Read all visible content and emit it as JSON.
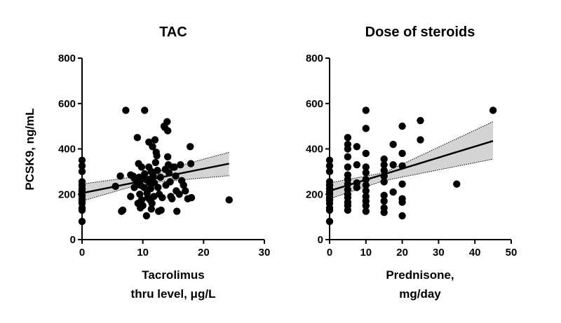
{
  "ylabel": "PCSK9, ng/mL",
  "chart_data": [
    {
      "type": "scatter",
      "title": "TAC",
      "xlabel": [
        "Tacrolimus",
        "thru level, μg/L"
      ],
      "ylabel": "PCSK9, ng/mL",
      "xlim": [
        0,
        30
      ],
      "ylim": [
        0,
        800
      ],
      "xticks": [
        0,
        10,
        20,
        30
      ],
      "yticks": [
        0,
        200,
        400,
        600,
        800
      ],
      "grid": false,
      "series": [
        {
          "points": [
            [
              0,
              80
            ],
            [
              0,
              130
            ],
            [
              0,
              140
            ],
            [
              0,
              160
            ],
            [
              0,
              170
            ],
            [
              0,
              180
            ],
            [
              0,
              195
            ],
            [
              0,
              210
            ],
            [
              0,
              215
            ],
            [
              0,
              225
            ],
            [
              0,
              240
            ],
            [
              0,
              255
            ],
            [
              0,
              300
            ],
            [
              0,
              325
            ],
            [
              0,
              350
            ],
            [
              5.5,
              235
            ],
            [
              6.3,
              280
            ],
            [
              6.5,
              125
            ],
            [
              6.7,
              130
            ],
            [
              7.2,
              570
            ],
            [
              8,
              190
            ],
            [
              8,
              285
            ],
            [
              8.4,
              280
            ],
            [
              8.6,
              270
            ],
            [
              8.6,
              230
            ],
            [
              9,
              255
            ],
            [
              9.1,
              450
            ],
            [
              9.2,
              160
            ],
            [
              9.3,
              335
            ],
            [
              9.4,
              275
            ],
            [
              9.5,
              200
            ],
            [
              9.6,
              140
            ],
            [
              9.6,
              240
            ],
            [
              9.7,
              265
            ],
            [
              9.8,
              320
            ],
            [
              9.8,
              175
            ],
            [
              10,
              150
            ],
            [
              10.2,
              230
            ],
            [
              10.3,
              290
            ],
            [
              10.3,
              570
            ],
            [
              10.5,
              265
            ],
            [
              10.6,
              105
            ],
            [
              10.7,
              205
            ],
            [
              10.8,
              185
            ],
            [
              11,
              430
            ],
            [
              11,
              320
            ],
            [
              11,
              265
            ],
            [
              11.1,
              250
            ],
            [
              11.2,
              175
            ],
            [
              11.3,
              225
            ],
            [
              11.4,
              300
            ],
            [
              11.4,
              135
            ],
            [
              11.5,
              160
            ],
            [
              11.6,
              410
            ],
            [
              11.7,
              280
            ],
            [
              11.8,
              190
            ],
            [
              11.9,
              250
            ],
            [
              12,
              440
            ],
            [
              12.1,
              340
            ],
            [
              12.2,
              385
            ],
            [
              12.3,
              370
            ],
            [
              12.4,
              305
            ],
            [
              12.5,
              230
            ],
            [
              12.6,
              125
            ],
            [
              12.7,
              200
            ],
            [
              12.9,
              275
            ],
            [
              13,
              130
            ],
            [
              13.2,
              185
            ],
            [
              13.5,
              500
            ],
            [
              13.6,
              495
            ],
            [
              13.7,
              310
            ],
            [
              13.8,
              240
            ],
            [
              14,
              520
            ],
            [
              14.1,
              480
            ],
            [
              14.1,
              365
            ],
            [
              14.2,
              330
            ],
            [
              14.3,
              295
            ],
            [
              14.5,
              255
            ],
            [
              14.6,
              190
            ],
            [
              14.8,
              180
            ],
            [
              15,
              320
            ],
            [
              15.2,
              320
            ],
            [
              15.4,
              280
            ],
            [
              15.5,
              215
            ],
            [
              15.6,
              125
            ],
            [
              16,
              200
            ],
            [
              16.2,
              330
            ],
            [
              16.4,
              260
            ],
            [
              16.7,
              240
            ],
            [
              17,
              215
            ],
            [
              17.4,
              180
            ],
            [
              17.8,
              410
            ],
            [
              17.9,
              335
            ],
            [
              18,
              185
            ],
            [
              24.2,
              175
            ]
          ],
          "fit_line": {
            "x": [
              0,
              24.2
            ],
            "y": [
              205,
              335
            ]
          },
          "ci_band": {
            "x": [
              0,
              10,
              24.2
            ],
            "lower": [
              170,
              248,
              282
            ],
            "upper": [
              245,
              282,
              385
            ]
          }
        }
      ]
    },
    {
      "type": "scatter",
      "title": "Dose of steroids",
      "xlabel": [
        "Prednisone,",
        "mg/day"
      ],
      "ylabel": "",
      "xlim": [
        0,
        50
      ],
      "ylim": [
        0,
        800
      ],
      "xticks": [
        0,
        10,
        20,
        30,
        40,
        50
      ],
      "yticks": [
        0,
        200,
        400,
        600,
        800
      ],
      "grid": false,
      "series": [
        {
          "points": [
            [
              0,
              80
            ],
            [
              0,
              130
            ],
            [
              0,
              140
            ],
            [
              0,
              160
            ],
            [
              0,
              175
            ],
            [
              0,
              185
            ],
            [
              0,
              200
            ],
            [
              0,
              210
            ],
            [
              0,
              225
            ],
            [
              0,
              240
            ],
            [
              0,
              255
            ],
            [
              0,
              300
            ],
            [
              0,
              325
            ],
            [
              0,
              350
            ],
            [
              5,
              130
            ],
            [
              5,
              150
            ],
            [
              5,
              165
            ],
            [
              5,
              185
            ],
            [
              5,
              200
            ],
            [
              5,
              220
            ],
            [
              5,
              245
            ],
            [
              5,
              265
            ],
            [
              5,
              285
            ],
            [
              5,
              320
            ],
            [
              5,
              365
            ],
            [
              5,
              400
            ],
            [
              5,
              420
            ],
            [
              5,
              450
            ],
            [
              7.5,
              230
            ],
            [
              7.5,
              250
            ],
            [
              7.5,
              330
            ],
            [
              7.5,
              410
            ],
            [
              10,
              125
            ],
            [
              10,
              150
            ],
            [
              10,
              170
            ],
            [
              10,
              190
            ],
            [
              10,
              215
            ],
            [
              10,
              240
            ],
            [
              10,
              265
            ],
            [
              10,
              295
            ],
            [
              10,
              320
            ],
            [
              10,
              380
            ],
            [
              10,
              490
            ],
            [
              10,
              570
            ],
            [
              15,
              120
            ],
            [
              15,
              140
            ],
            [
              15,
              170
            ],
            [
              15,
              195
            ],
            [
              15,
              255
            ],
            [
              15,
              280
            ],
            [
              15,
              305
            ],
            [
              15,
              330
            ],
            [
              15,
              355
            ],
            [
              17.5,
              210
            ],
            [
              17.5,
              330
            ],
            [
              17.5,
              420
            ],
            [
              20,
              105
            ],
            [
              20,
              165
            ],
            [
              20,
              180
            ],
            [
              20,
              245
            ],
            [
              20,
              325
            ],
            [
              20,
              380
            ],
            [
              20,
              500
            ],
            [
              25,
              440
            ],
            [
              25,
              525
            ],
            [
              35,
              245
            ],
            [
              45,
              570
            ]
          ],
          "fit_line": {
            "x": [
              0,
              45
            ],
            "y": [
              215,
              435
            ]
          },
          "ci_band": {
            "x": [
              0,
              15,
              45
            ],
            "lower": [
              180,
              260,
              355
            ],
            "upper": [
              250,
              295,
              520
            ]
          }
        }
      ]
    }
  ]
}
